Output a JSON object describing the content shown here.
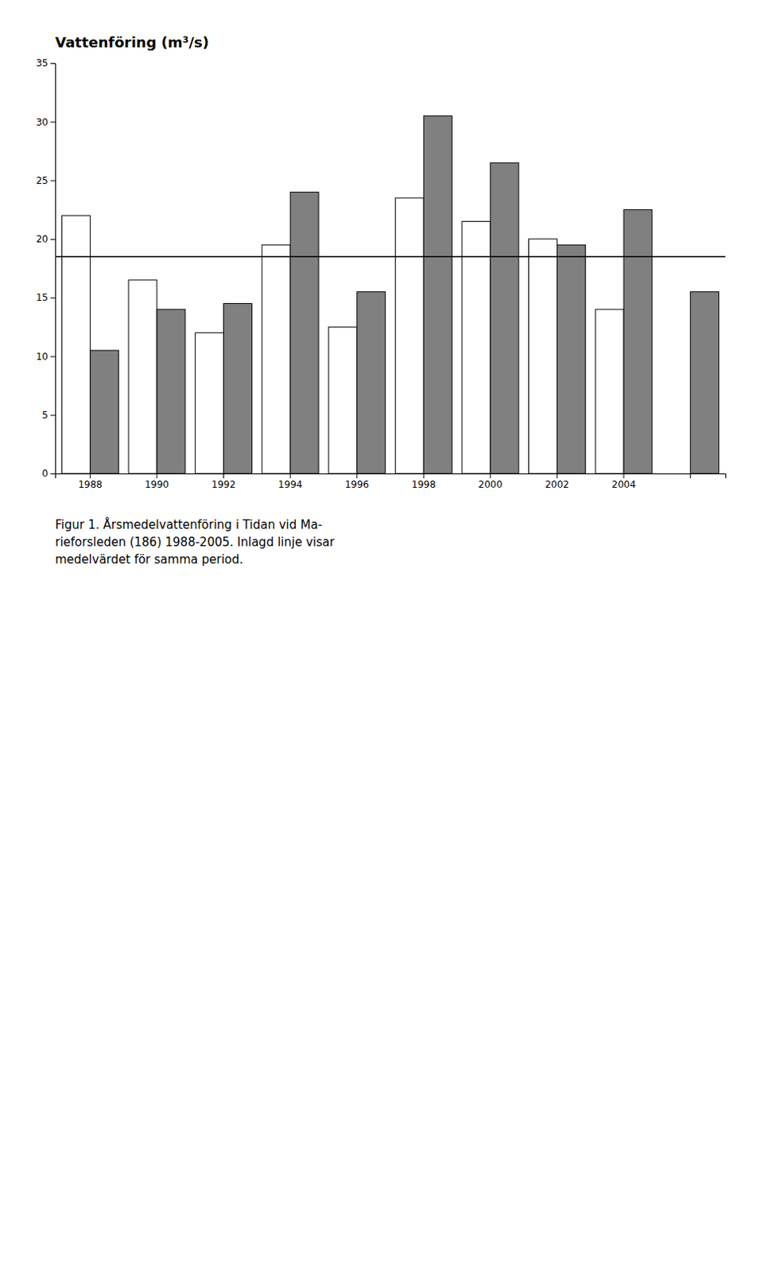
{
  "chart_data": {
    "type": "bar",
    "title": "Vattenföring (m³/s)",
    "categories": [
      "1988",
      "1990",
      "1992",
      "1994",
      "1996",
      "1998",
      "2000",
      "2002",
      "2004",
      null
    ],
    "series": [
      {
        "color": "#ffffff",
        "values": [
          22.0,
          16.5,
          12.0,
          19.5,
          12.5,
          23.5,
          21.5,
          20.0,
          14.0,
          null
        ]
      },
      {
        "color": "#808080",
        "values": [
          10.5,
          14.0,
          14.5,
          24.0,
          15.5,
          30.5,
          26.5,
          19.5,
          22.5,
          15.5
        ]
      }
    ],
    "mean_line": 18.5,
    "ylim": [
      0,
      35
    ],
    "yticks": [
      0,
      5,
      10,
      15,
      20,
      25,
      30,
      35
    ],
    "grid": false,
    "annotations": [
      "Figur 1.  Årsmedelvattenföring i Tidan vid Ma-",
      "rieforsleden (186) 1988-2005. Inlagd linje visar",
      "medelvärdet för samma period."
    ]
  }
}
